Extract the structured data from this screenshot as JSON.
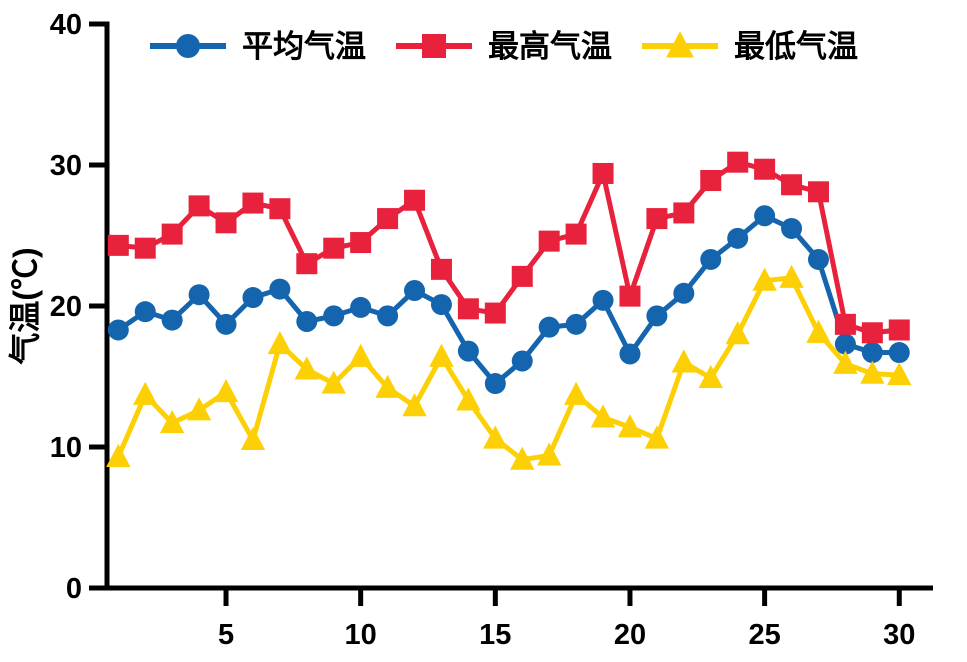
{
  "figure": {
    "background": "#ffffff",
    "axis_color": "#000000"
  },
  "chart_data": {
    "type": "line",
    "title": "",
    "xlabel": "",
    "ylabel": "气温(℃)",
    "ylim": [
      0,
      40
    ],
    "xlim": [
      1,
      30
    ],
    "yticks": [
      0,
      10,
      20,
      30,
      40
    ],
    "xticks": [
      5,
      10,
      15,
      20,
      25,
      30
    ],
    "grid": false,
    "legend_position": "top",
    "x": [
      1,
      2,
      3,
      4,
      5,
      6,
      7,
      8,
      9,
      10,
      11,
      12,
      13,
      14,
      15,
      16,
      17,
      18,
      19,
      20,
      21,
      22,
      23,
      24,
      25,
      26,
      27,
      28,
      29,
      30
    ],
    "series": [
      {
        "id": "avg-temp",
        "name": "平均气温",
        "color": "#1565AE",
        "marker": "circle",
        "values": [
          18.3,
          19.6,
          19.0,
          20.8,
          18.7,
          20.6,
          21.2,
          18.9,
          19.3,
          19.9,
          19.3,
          21.1,
          20.1,
          16.8,
          14.5,
          16.1,
          18.5,
          18.7,
          20.4,
          16.6,
          19.3,
          20.9,
          23.3,
          24.8,
          26.4,
          25.5,
          23.3,
          17.3,
          16.7,
          16.7
        ]
      },
      {
        "id": "max-temp",
        "name": "最高气温",
        "color": "#E8213D",
        "marker": "square",
        "values": [
          24.3,
          24.1,
          25.1,
          27.1,
          25.9,
          27.3,
          26.9,
          23.0,
          24.1,
          24.5,
          26.2,
          27.5,
          22.6,
          19.8,
          19.5,
          22.1,
          24.6,
          25.1,
          29.4,
          20.7,
          26.2,
          26.6,
          28.9,
          30.2,
          29.7,
          28.6,
          28.1,
          18.7,
          18.1,
          18.3
        ]
      },
      {
        "id": "min-temp",
        "name": "最低气温",
        "color": "#FDD005",
        "marker": "triangle",
        "values": [
          9.3,
          13.7,
          11.7,
          12.6,
          13.9,
          10.5,
          17.3,
          15.5,
          14.5,
          16.4,
          14.2,
          12.9,
          16.4,
          13.3,
          10.6,
          9.1,
          9.4,
          13.7,
          12.1,
          11.4,
          10.6,
          16.0,
          14.9,
          18.0,
          21.8,
          22.0,
          18.1,
          15.9,
          15.2,
          15.1
        ]
      }
    ]
  }
}
